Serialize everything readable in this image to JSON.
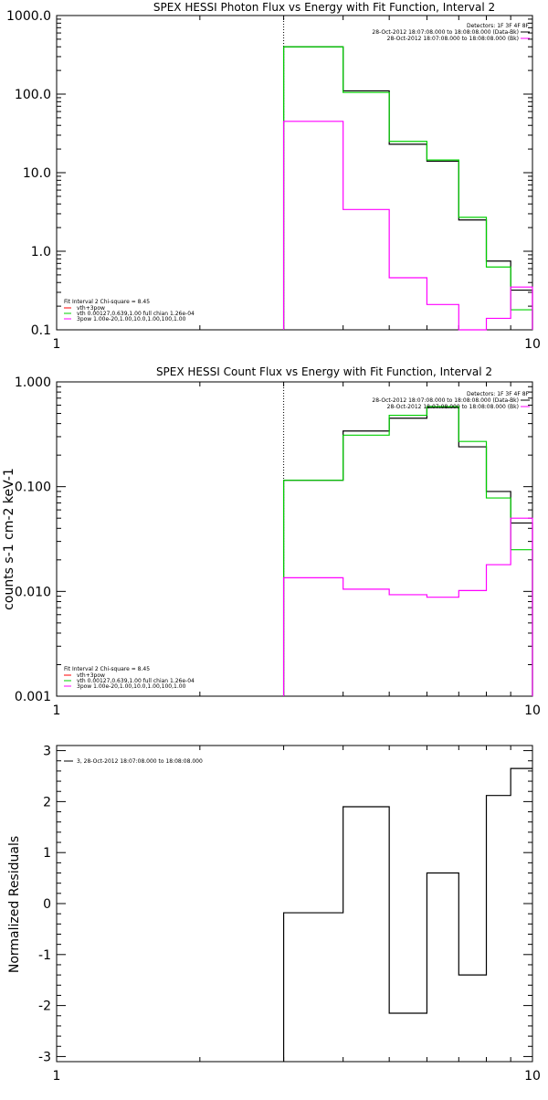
{
  "colors": {
    "data": "#000000",
    "total": "#00d000",
    "thermal": "#ff00ff",
    "background": "#ffffff"
  },
  "chart_data": [
    {
      "type": "line",
      "title": "SPEX HESSI Photon Flux vs Energy with Fit Function, Interval 2",
      "xlabel": "",
      "ylabel": "",
      "xscale": "log",
      "yscale": "log",
      "xlim": [
        1,
        10
      ],
      "ylim": [
        0.1,
        1000
      ],
      "x_ticks": [
        "1",
        "10"
      ],
      "y_ticks": [
        "1000.0",
        "100.0",
        "10.0",
        "1.0",
        "0.1"
      ],
      "marker_x": 3,
      "legend_upper": [
        "Detectors: 1F 3F 4F 8F",
        "28-Oct-2012 18:07:08.000 to 18:08:08.000 (Data-Bk)",
        "28-Oct-2012 18:07:08.000 to 18:08:08.000 (Bk)"
      ],
      "legend_lower": [
        "Fit Interval 2   Chi-square = 8.45",
        "vth+3pow",
        "vth 0.00127,0.639,1.00  full chian 1.26e-04",
        "3pow 1.00e-20,1.00,10.0,1.00,100,1.00"
      ],
      "bin_edges": [
        3,
        4,
        5,
        6,
        7,
        8,
        9,
        10
      ],
      "series": [
        {
          "name": "data",
          "color": "black",
          "values": [
            400,
            110,
            23,
            14,
            2.5,
            0.75,
            0.32
          ]
        },
        {
          "name": "vth+3pow",
          "color": "green",
          "values": [
            400,
            105,
            25,
            14.5,
            2.7,
            0.63,
            0.18
          ]
        },
        {
          "name": "vth",
          "color": "magenta",
          "values": [
            45,
            3.4,
            0.46,
            0.21,
            0.095,
            0.14,
            0.35
          ]
        }
      ]
    },
    {
      "type": "line",
      "title": "SPEX HESSI Count Flux vs Energy with Fit Function, Interval 2",
      "xlabel": "",
      "ylabel": "counts s-1 cm-2 keV-1",
      "xscale": "log",
      "yscale": "log",
      "xlim": [
        1,
        10
      ],
      "ylim": [
        0.001,
        1
      ],
      "x_ticks": [
        "1",
        "10"
      ],
      "y_ticks": [
        "1.000",
        "0.100",
        "0.010",
        "0.001"
      ],
      "marker_x": 3,
      "legend_upper": [
        "Detectors: 1F 3F 4F 8F",
        "28-Oct-2012 18:07:08.000 to 18:08:08.000 (Data-Bk)",
        "28-Oct-2012 18:07:08.000 to 18:08:08.000 (Bk)"
      ],
      "legend_lower": [
        "Fit Interval 2   Chi-square = 8.45",
        "vth+3pow",
        "vth 0.00127,0.639,1.00  full chian 1.26e-04",
        "3pow 1.00e-20,1.00,10.0,1.00,100,1.00"
      ],
      "bin_edges": [
        3,
        4,
        5,
        6,
        7,
        8,
        9,
        10
      ],
      "series": [
        {
          "name": "data",
          "color": "black",
          "values": [
            0.115,
            0.34,
            0.45,
            0.57,
            0.24,
            0.09,
            0.045
          ]
        },
        {
          "name": "vth+3pow",
          "color": "green",
          "values": [
            0.115,
            0.31,
            0.48,
            0.58,
            0.27,
            0.078,
            0.025
          ]
        },
        {
          "name": "vth",
          "color": "magenta",
          "values": [
            0.0135,
            0.0105,
            0.0093,
            0.0088,
            0.0102,
            0.018,
            0.05
          ]
        }
      ]
    },
    {
      "type": "line",
      "title": "",
      "xlabel": "",
      "ylabel": "Normalized Residuals",
      "xscale": "log",
      "yscale": "linear",
      "xlim": [
        1,
        10
      ],
      "ylim": [
        -3.1,
        3.1
      ],
      "x_ticks": [
        "1",
        "10"
      ],
      "y_ticks": [
        "3",
        "2",
        "1",
        "0",
        "-1",
        "-2",
        "-3"
      ],
      "legend": [
        "3, 28-Oct-2012 18:07:08.000 to 18:08:08.000"
      ],
      "bin_edges": [
        3,
        4,
        5,
        6,
        7,
        8,
        9,
        10
      ],
      "series": [
        {
          "name": "3, 28-Oct-2012 18:07:08.000 to 18:08:08.000",
          "color": "black",
          "values": [
            -0.18,
            1.9,
            -2.15,
            0.6,
            -1.4,
            2.12,
            2.65
          ]
        }
      ]
    }
  ]
}
